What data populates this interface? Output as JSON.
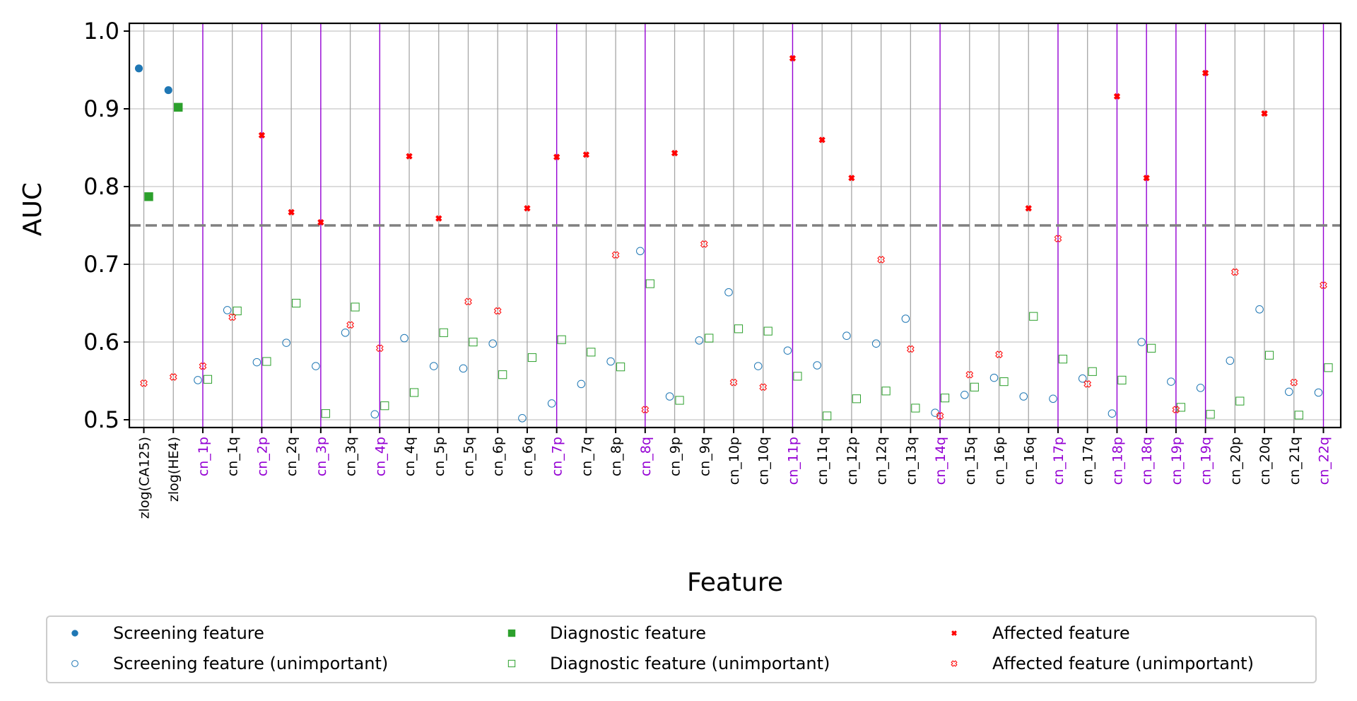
{
  "chart_data": {
    "type": "scatter",
    "xlabel": "Feature",
    "ylabel": "AUC",
    "ylim": [
      0.49,
      1.01
    ],
    "yticks": [
      "0.5",
      "0.6",
      "0.7",
      "0.8",
      "0.9",
      "1.0"
    ],
    "threshold": 0.75,
    "grid": true,
    "legend_position": "bottom",
    "colors": {
      "screening": "#1f77b4",
      "diagnostic": "#2ca02c",
      "affected": "#ff0000",
      "highlight_label": "#9400d3",
      "normal_label": "#000000",
      "threshold": "#808080"
    },
    "categories": [
      "zlog(CA125)",
      "zlog(HE4)",
      "cn_1p",
      "cn_1q",
      "cn_2p",
      "cn_2q",
      "cn_3p",
      "cn_3q",
      "cn_4p",
      "cn_4q",
      "cn_5p",
      "cn_5q",
      "cn_6p",
      "cn_6q",
      "cn_7p",
      "cn_7q",
      "cn_8p",
      "cn_8q",
      "cn_9p",
      "cn_9q",
      "cn_10p",
      "cn_10q",
      "cn_11p",
      "cn_11q",
      "cn_12p",
      "cn_12q",
      "cn_13q",
      "cn_14q",
      "cn_15q",
      "cn_16p",
      "cn_16q",
      "cn_17p",
      "cn_17q",
      "cn_18p",
      "cn_18q",
      "cn_19p",
      "cn_19q",
      "cn_20p",
      "cn_20q",
      "cn_21q",
      "cn_22q"
    ],
    "highlighted_categories": [
      "cn_1p",
      "cn_2p",
      "cn_3p",
      "cn_4p",
      "cn_7p",
      "cn_8q",
      "cn_11p",
      "cn_14q",
      "cn_17p",
      "cn_18p",
      "cn_18q",
      "cn_19p",
      "cn_19q",
      "cn_22q"
    ],
    "series": [
      {
        "name": "Screening feature",
        "marker": "filled-circle",
        "color": "screening",
        "x": [
          0,
          1
        ],
        "y": [
          0.952,
          0.924
        ]
      },
      {
        "name": "Diagnostic feature",
        "marker": "filled-square",
        "color": "diagnostic",
        "x": [
          0,
          1
        ],
        "y": [
          0.787,
          0.902
        ]
      },
      {
        "name": "Affected feature",
        "marker": "filled-x",
        "color": "affected",
        "x": [
          4,
          5,
          6,
          9,
          10,
          13,
          14,
          15,
          18,
          22,
          23,
          24,
          30,
          33,
          34,
          36,
          38
        ],
        "y": [
          0.866,
          0.767,
          0.754,
          0.839,
          0.759,
          0.772,
          0.838,
          0.841,
          0.843,
          0.965,
          0.86,
          0.811,
          0.772,
          0.916,
          0.811,
          0.946,
          0.894
        ]
      },
      {
        "name": "Screening feature (unimportant)",
        "marker": "hollow-circle",
        "color": "screening",
        "x": [
          2,
          3,
          4,
          5,
          6,
          7,
          8,
          9,
          10,
          11,
          12,
          13,
          14,
          15,
          16,
          17,
          18,
          19,
          20,
          21,
          22,
          23,
          24,
          25,
          26,
          27,
          28,
          29,
          30,
          31,
          32,
          33,
          34,
          35,
          36,
          37,
          38,
          39,
          40
        ],
        "y": [
          0.551,
          0.641,
          0.574,
          0.599,
          0.569,
          0.612,
          0.507,
          0.605,
          0.569,
          0.566,
          0.598,
          0.502,
          0.521,
          0.546,
          0.575,
          0.717,
          0.53,
          0.602,
          0.664,
          0.569,
          0.589,
          0.57,
          0.608,
          0.598,
          0.63,
          0.509,
          0.532,
          0.554,
          0.53,
          0.527,
          0.553,
          0.508,
          0.6,
          0.549,
          0.541,
          0.576,
          0.642,
          0.536,
          0.535
        ]
      },
      {
        "name": "Diagnostic feature (unimportant)",
        "marker": "hollow-square",
        "color": "diagnostic",
        "x": [
          2,
          3,
          4,
          5,
          6,
          7,
          8,
          9,
          10,
          11,
          12,
          13,
          14,
          15,
          16,
          17,
          18,
          19,
          20,
          21,
          22,
          23,
          24,
          25,
          26,
          27,
          28,
          29,
          30,
          31,
          32,
          33,
          34,
          35,
          36,
          37,
          38,
          39,
          40
        ],
        "y": [
          0.552,
          0.64,
          0.575,
          0.65,
          0.508,
          0.645,
          0.518,
          0.535,
          0.612,
          0.6,
          0.558,
          0.58,
          0.603,
          0.587,
          0.568,
          0.675,
          0.525,
          0.605,
          0.617,
          0.614,
          0.556,
          0.505,
          0.527,
          0.537,
          0.515,
          0.528,
          0.542,
          0.549,
          0.633,
          0.578,
          0.562,
          0.551,
          0.592,
          0.516,
          0.507,
          0.524,
          0.583,
          0.506,
          0.567
        ]
      },
      {
        "name": "Affected feature (unimportant)",
        "marker": "hollow-x",
        "color": "affected",
        "x": [
          0,
          1,
          2,
          3,
          7,
          8,
          11,
          12,
          16,
          17,
          19,
          20,
          21,
          25,
          26,
          27,
          28,
          29,
          31,
          32,
          35,
          37,
          39,
          40
        ],
        "y": [
          0.547,
          0.555,
          0.569,
          0.632,
          0.622,
          0.592,
          0.652,
          0.64,
          0.712,
          0.513,
          0.726,
          0.548,
          0.542,
          0.706,
          0.591,
          0.505,
          0.558,
          0.584,
          0.733,
          0.546,
          0.513,
          0.69,
          0.548,
          0.673
        ]
      }
    ],
    "legend": [
      [
        "Screening feature",
        "Diagnostic feature",
        "Affected feature"
      ],
      [
        "Screening feature (unimportant)",
        "Diagnostic feature (unimportant)",
        "Affected feature (unimportant)"
      ]
    ]
  }
}
